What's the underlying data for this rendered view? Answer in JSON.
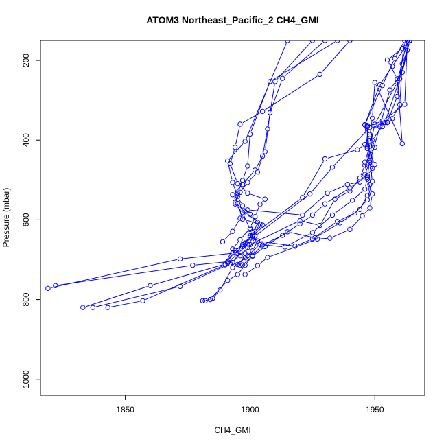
{
  "chart_data": {
    "type": "line",
    "title": "ATOM3 Northeast_Pacific_2 CH4_GMI",
    "xlabel": "CH4_GMI",
    "ylabel": "Pressure (mbar)",
    "xlim": [
      1816,
      1970
    ],
    "ylim": [
      1040,
      150
    ],
    "y_reversed": true,
    "grid": false,
    "legend": "none",
    "series_color": "#0000ff",
    "xticks": [
      1850,
      1900,
      1950
    ],
    "yticks": [
      200,
      400,
      600,
      800,
      1000
    ],
    "xtick_labels": [
      "1850",
      "1900",
      "1950"
    ],
    "ytick_labels": [
      "200",
      "400",
      "600",
      "800",
      "1000"
    ],
    "series": [
      {
        "x": [
          1819,
          1872,
          1894,
          1897,
          1900,
          1905,
          1897,
          1895,
          1893,
          1897,
          1902,
          1906,
          1908,
          1913,
          1930
        ],
        "y": [
          772,
          698,
          683,
          667,
          640,
          613,
          598,
          559,
          537,
          511,
          475,
          429,
          331,
          245,
          150
        ]
      },
      {
        "x": [
          1822,
          1877,
          1891,
          1894,
          1898,
          1901,
          1903,
          1898,
          1894,
          1896,
          1899,
          1903,
          1905,
          1907,
          1910,
          1925
        ],
        "y": [
          765,
          714,
          705,
          677,
          660,
          641,
          606,
          580,
          556,
          531,
          506,
          480,
          440,
          372,
          253,
          150
        ]
      },
      {
        "x": [
          1833,
          1860,
          1890,
          1893,
          1896,
          1900,
          1902,
          1904,
          1906,
          1899,
          1895,
          1892,
          1894,
          1896,
          1905,
          1928,
          1940
        ],
        "y": [
          820,
          765,
          711,
          673,
          650,
          621,
          592,
          561,
          548,
          533,
          509,
          459,
          418,
          360,
          328,
          235,
          150
        ]
      },
      {
        "x": [
          1837,
          1872,
          1892,
          1896,
          1899,
          1902,
          1900,
          1897,
          1894,
          1895,
          1897,
          1899,
          1900,
          1908,
          1935
        ],
        "y": [
          820,
          767,
          710,
          690,
          670,
          655,
          624,
          582,
          560,
          533,
          501,
          465,
          385,
          253,
          150
        ]
      },
      {
        "x": [
          1843,
          1857,
          1890,
          1893,
          1897,
          1900,
          1902,
          1904,
          1900,
          1897,
          1895,
          1893,
          1891,
          1898,
          1915
        ],
        "y": [
          820,
          803,
          713,
          683,
          662,
          644,
          629,
          611,
          586,
          565,
          541,
          506,
          452,
          403,
          150
        ]
      },
      {
        "x": [
          1881,
          1884,
          1891,
          1895,
          1898,
          1901,
          1905,
          1913,
          1920,
          1925,
          1930,
          1940,
          1947,
          1950,
          1947,
          1946,
          1953,
          1958,
          1962
        ],
        "y": [
          803,
          800,
          752,
          737,
          714,
          689,
          663,
          639,
          610,
          588,
          560,
          520,
          489,
          461,
          415,
          362,
          263,
          195,
          150
        ]
      },
      {
        "x": [
          1882,
          1885,
          1888,
          1893,
          1898,
          1901,
          1903,
          1918,
          1925,
          1935,
          1942,
          1947,
          1949,
          1948,
          1947,
          1947,
          1955,
          1959,
          1962
        ],
        "y": [
          803,
          797,
          776,
          720,
          695,
          678,
          653,
          666,
          648,
          604,
          583,
          550,
          503,
          455,
          421,
          363,
          356,
          290,
          150
        ]
      },
      {
        "x": [
          1898,
          1903,
          1907,
          1927,
          1932,
          1940,
          1945,
          1948,
          1949,
          1947,
          1946,
          1948,
          1950,
          1959,
          1963
        ],
        "y": [
          737,
          715,
          694,
          648,
          646,
          624,
          590,
          570,
          535,
          498,
          455,
          415,
          360,
          255,
          150
        ]
      },
      {
        "x": [
          1897,
          1901,
          1906,
          1915,
          1926,
          1936,
          1944,
          1947,
          1948,
          1949,
          1948,
          1949,
          1954,
          1960,
          1964
        ],
        "y": [
          713,
          691,
          667,
          630,
          645,
          608,
          574,
          539,
          511,
          471,
          441,
          400,
          356,
          246,
          150
        ]
      },
      {
        "x": [
          1895,
          1899,
          1904,
          1914,
          1925,
          1933,
          1941,
          1946,
          1947,
          1948,
          1947,
          1953,
          1962,
          1963
        ],
        "y": [
          712,
          690,
          662,
          668,
          632,
          588,
          551,
          523,
          493,
          450,
          366,
          352,
          310,
          150
        ]
      },
      {
        "x": [
          1896,
          1898,
          1900,
          1920,
          1928,
          1934,
          1940,
          1944,
          1946,
          1948,
          1950,
          1948,
          1946,
          1952,
          1957,
          1964
        ],
        "y": [
          714,
          684,
          662,
          602,
          614,
          548,
          528,
          495,
          463,
          434,
          418,
          386,
          361,
          261,
          215,
          150
        ]
      },
      {
        "x": [
          1893,
          1896,
          1898,
          1901,
          1921,
          1930,
          1943,
          1946,
          1948,
          1949,
          1950,
          1961,
          1959,
          1955,
          1961,
          1964
        ],
        "y": [
          707,
          681,
          658,
          638,
          544,
          447,
          424,
          411,
          390,
          345,
          255,
          409,
          246,
          199,
          170,
          150
        ]
      },
      {
        "x": [
          1891,
          1895,
          1899,
          1902,
          1924,
          1933,
          1948,
          1953,
          1955,
          1957,
          1960,
          1961,
          1963,
          1964
        ],
        "y": [
          708,
          685,
          661,
          641,
          535,
          468,
          368,
          366,
          355,
          346,
          311,
          209,
          175,
          150
        ]
      },
      {
        "x": [
          1889,
          1893,
          1896,
          1899,
          1921,
          1931,
          1939,
          1944,
          1946,
          1948,
          1952,
          1956,
          1961,
          1964
        ],
        "y": [
          655,
          629,
          596,
          575,
          588,
          533,
          511,
          505,
          486,
          455,
          366,
          274,
          230,
          150
        ]
      }
    ]
  }
}
